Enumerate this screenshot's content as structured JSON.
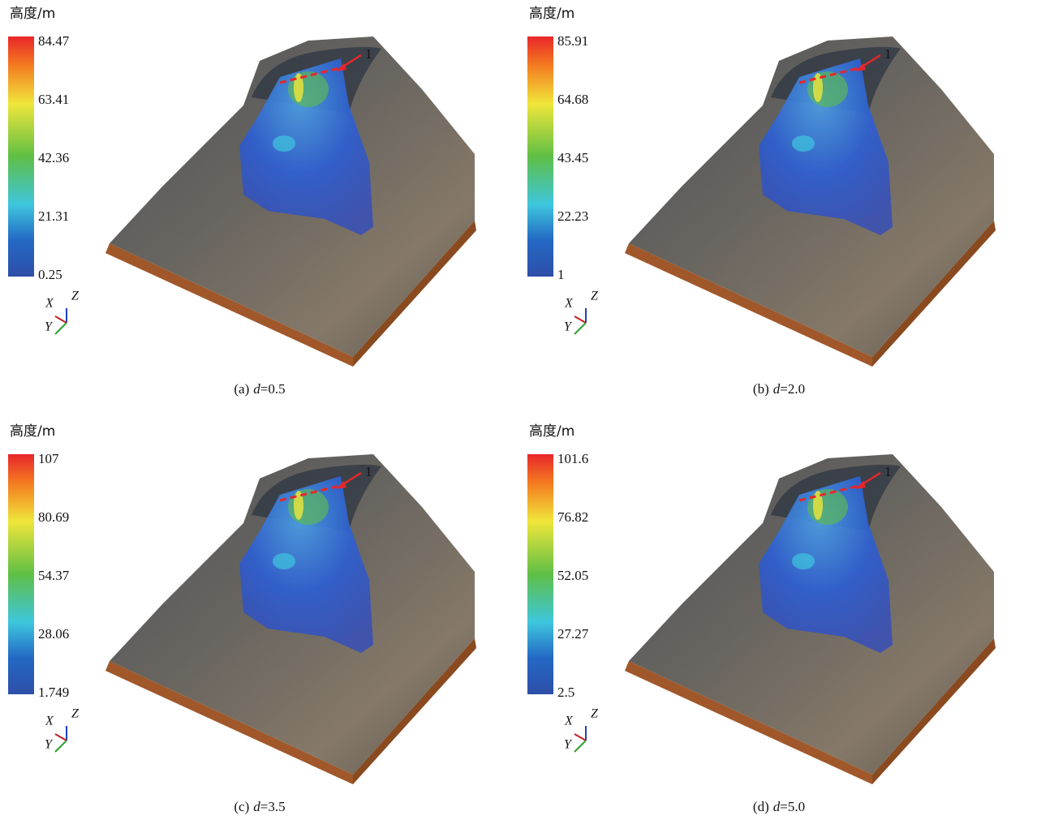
{
  "panels": [
    {
      "colorbar": {
        "title": "高度/m",
        "ticks": [
          "84.47",
          "63.41",
          "42.36",
          "21.31",
          "0.25"
        ]
      },
      "axes": {
        "x": "X",
        "y": "Y",
        "z": "Z"
      },
      "marker": "1",
      "caption": {
        "label": "(a)",
        "variable": "d",
        "value": "=0.5"
      }
    },
    {
      "colorbar": {
        "title": "高度/m",
        "ticks": [
          "85.91",
          "64.68",
          "43.45",
          "22.23",
          "1"
        ]
      },
      "axes": {
        "x": "X",
        "y": "Y",
        "z": "Z"
      },
      "marker": "1",
      "caption": {
        "label": "(b)",
        "variable": "d",
        "value": "=2.0"
      }
    },
    {
      "colorbar": {
        "title": "高度/m",
        "ticks": [
          "107",
          "80.69",
          "54.37",
          "28.06",
          "1.749"
        ]
      },
      "axes": {
        "x": "X",
        "y": "Y",
        "z": "Z"
      },
      "marker": "1",
      "caption": {
        "label": "(c)",
        "variable": "d",
        "value": "=3.5"
      }
    },
    {
      "colorbar": {
        "title": "高度/m",
        "ticks": [
          "101.6",
          "76.82",
          "52.05",
          "27.27",
          "2.5"
        ]
      },
      "axes": {
        "x": "X",
        "y": "Y",
        "z": "Z"
      },
      "marker": "1",
      "caption": {
        "label": "(d)",
        "variable": "d",
        "value": "=5.0"
      }
    }
  ]
}
